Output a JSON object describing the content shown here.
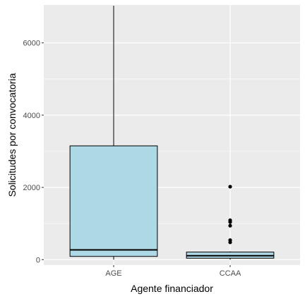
{
  "chart_data": {
    "type": "boxplot",
    "xlabel": "Agente financiador",
    "ylabel": "Solicitudes por convocatoria",
    "categories": [
      "AGE",
      "CCAA"
    ],
    "ylim": [
      -150,
      7050
    ],
    "yticks": [
      0,
      2000,
      4000,
      6000
    ],
    "ytick_labels": [
      "0",
      "2000",
      "4000",
      "6000"
    ],
    "grid": true,
    "boxes": [
      {
        "category": "AGE",
        "min": 0,
        "q1": 90,
        "median": 270,
        "q3": 3150,
        "max": 7030,
        "outliers": []
      },
      {
        "category": "CCAA",
        "min": 0,
        "q1": 40,
        "median": 110,
        "q3": 210,
        "max": 230,
        "outliers": [
          480,
          540,
          940,
          1040,
          1090,
          2020
        ]
      }
    ],
    "colors": {
      "panel_background": "#ebebeb",
      "major_grid": "#ffffff",
      "box_fill": "#add8e6",
      "box_stroke": "#000000",
      "outlier": "#000000"
    }
  }
}
